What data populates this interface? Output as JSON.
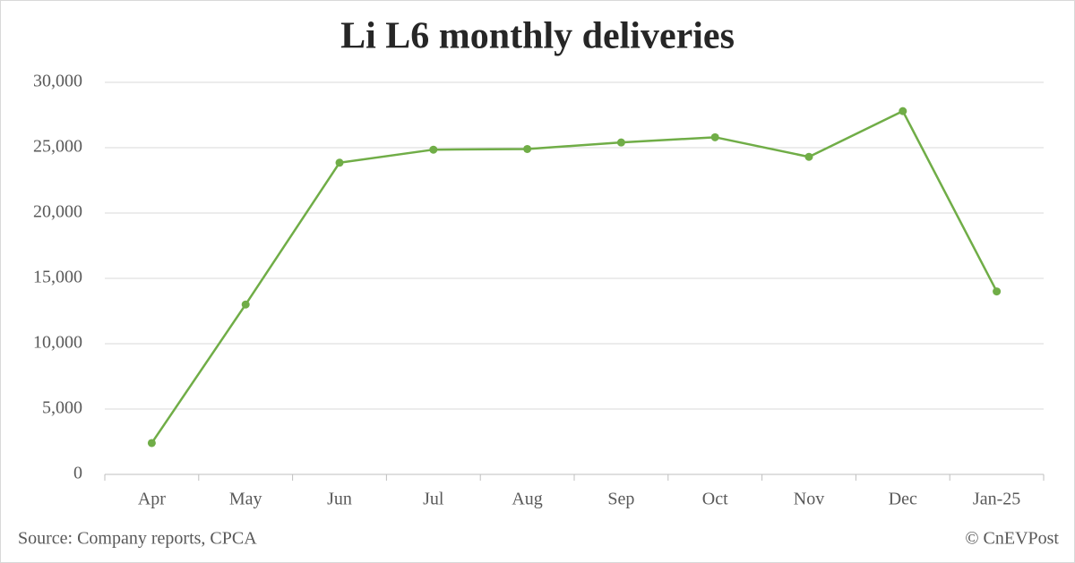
{
  "chart_data": {
    "type": "line",
    "title": "Li L6 monthly deliveries",
    "categories": [
      "Apr",
      "May",
      "Jun",
      "Jul",
      "Aug",
      "Sep",
      "Oct",
      "Nov",
      "Dec",
      "Jan-25"
    ],
    "series": [
      {
        "name": "Li L6",
        "color": "#70ad47",
        "values": [
          2400,
          13000,
          23850,
          24850,
          24900,
          25400,
          25800,
          24300,
          27800,
          14000
        ]
      }
    ],
    "ylim": [
      0,
      30000
    ],
    "yticks": [
      0,
      {
        "value": 5000,
        "label": "5,000"
      },
      {
        "value": 10000,
        "label": "10,000"
      },
      {
        "value": 15000,
        "label": "15,000"
      },
      {
        "value": 20000,
        "label": "20,000"
      },
      {
        "value": 25000,
        "label": "25,000"
      },
      {
        "value": 30000,
        "label": "30,000"
      }
    ],
    "grid": true,
    "source": "Source: Company reports, CPCA",
    "credit": "© CnEVPost"
  }
}
